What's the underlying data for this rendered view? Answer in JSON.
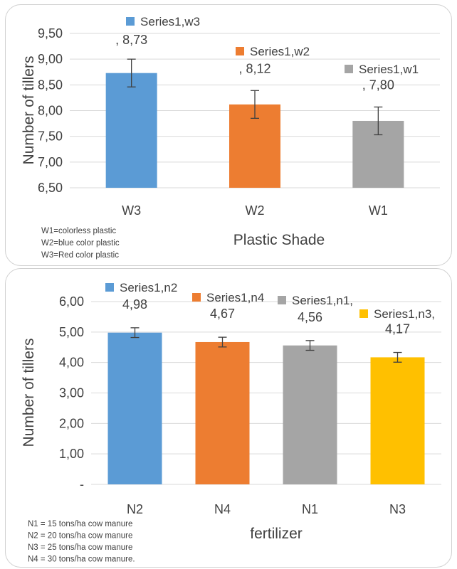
{
  "chart_data": [
    {
      "type": "bar",
      "categories": [
        "W3",
        "W2",
        "W1"
      ],
      "values": [
        8.73,
        8.12,
        7.8
      ],
      "error": [
        0.27,
        0.27,
        0.27
      ],
      "bar_colors": [
        "#5b9bd5",
        "#ed7d31",
        "#a5a5a5"
      ],
      "data_labels": [
        ", 8,73",
        ", 8,12",
        ", 7,80"
      ],
      "legend": [
        "Series1,w3",
        "Series1,w2",
        "Series1,w1"
      ],
      "xlabel": "Plastic Shade",
      "ylabel": "Number of tillers",
      "ylim": [
        6.5,
        9.5
      ],
      "y_ticks": [
        6.5,
        7.0,
        7.5,
        8.0,
        8.5,
        9.0,
        9.5
      ],
      "y_tick_labels": [
        "6,50",
        "7,00",
        "7,50",
        "8,00",
        "8,50",
        "9,00",
        "9,50"
      ],
      "gridlines": true,
      "notes": [
        "W1=colorless plastic",
        "W2=blue color plastic",
        "W3=Red color plastic"
      ]
    },
    {
      "type": "bar",
      "categories": [
        "N2",
        "N4",
        "N1",
        "N3"
      ],
      "values": [
        4.98,
        4.67,
        4.56,
        4.17
      ],
      "error": [
        0.16,
        0.16,
        0.16,
        0.16
      ],
      "bar_colors": [
        "#5b9bd5",
        "#ed7d31",
        "#a5a5a5",
        "#ffc000"
      ],
      "data_labels": [
        "4,98",
        "4,67",
        "4,56",
        "4,17"
      ],
      "legend": [
        "Series1,n2",
        "Series1,n4",
        "Series1,n1,",
        "Series1,n3,"
      ],
      "xlabel": "fertilizer",
      "ylabel": "Number of tillers",
      "ylim": [
        0,
        6
      ],
      "y_ticks": [
        0,
        1,
        2,
        3,
        4,
        5,
        6
      ],
      "y_tick_labels": [
        "-",
        "1,00",
        "2,00",
        "3,00",
        "4,00",
        "5,00",
        "6,00"
      ],
      "gridlines": true,
      "notes": [
        "N1 = 15 tons/ha cow manure",
        "N2 = 20 tons/ha cow manure",
        "N3 = 25 tons/ha cow manure",
        "N4 = 30 tons/ha cow manure."
      ]
    }
  ]
}
